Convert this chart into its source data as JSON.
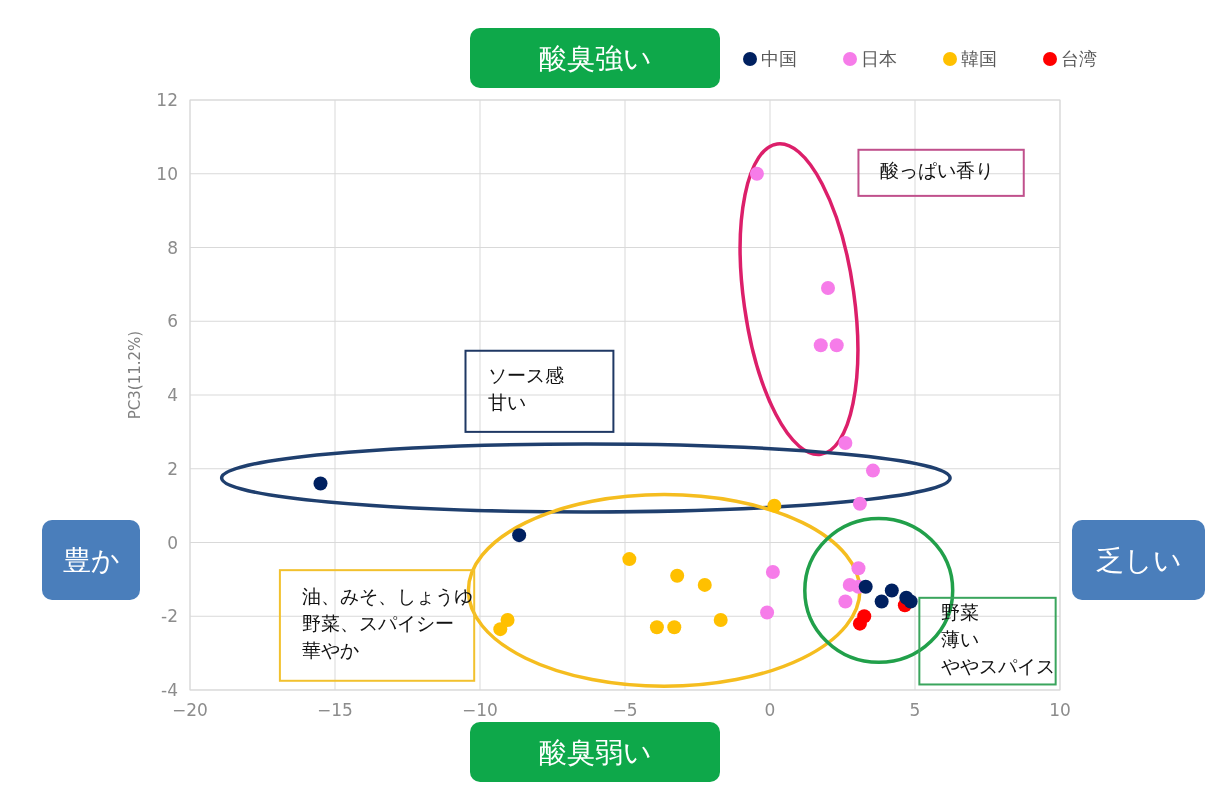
{
  "chart_data": {
    "type": "scatter",
    "ylabel": "PC3(11.2%)",
    "xlim": [
      -20,
      10
    ],
    "ylim": [
      -4,
      12
    ],
    "xticks": [
      -20,
      -15,
      -10,
      -5,
      0,
      5,
      10
    ],
    "yticks": [
      -4,
      -2,
      0,
      2,
      4,
      6,
      8,
      10,
      12
    ],
    "grid": true,
    "legend": "top right",
    "marker": "circle",
    "series": [
      {
        "name": "中国",
        "color": "#002060",
        "x": [
          -15.5,
          -8.65,
          3.3,
          4.2,
          3.85,
          4.7,
          4.85
        ],
        "values": [
          1.6,
          0.2,
          -1.2,
          -1.3,
          -1.6,
          -1.5,
          -1.6
        ]
      },
      {
        "name": "日本",
        "color": "#f67ce9",
        "x": [
          -0.45,
          2.0,
          1.75,
          2.3,
          2.6,
          3.55,
          3.1,
          0.1,
          -0.1,
          3.05,
          2.75,
          3.05,
          2.6
        ],
        "values": [
          10.0,
          6.9,
          5.35,
          5.35,
          2.7,
          1.95,
          1.05,
          -0.8,
          -1.9,
          -0.7,
          -1.15,
          -1.2,
          -1.6
        ]
      },
      {
        "name": "韓国",
        "color": "#ffc000",
        "x": [
          0.15,
          -4.85,
          -3.2,
          -2.25,
          -1.7,
          -3.9,
          -3.3,
          -9.05,
          -9.3
        ],
        "values": [
          1.0,
          -0.45,
          -0.9,
          -1.15,
          -2.1,
          -2.3,
          -2.3,
          -2.1,
          -2.35
        ]
      },
      {
        "name": "台湾",
        "color": "#ff0000",
        "x": [
          4.65,
          3.25,
          3.1
        ],
        "values": [
          -1.7,
          -2.0,
          -2.2
        ]
      }
    ],
    "annotations": [
      "酸臭強い",
      "酸臭弱い",
      "豊か",
      "乏しい",
      "酸っぱい香り",
      "ソース感",
      "甘い",
      "油、みそ、しょうゆ",
      "野菜、スパイシー",
      "華やか",
      "野菜",
      "薄い",
      "ややスパイス"
    ]
  }
}
